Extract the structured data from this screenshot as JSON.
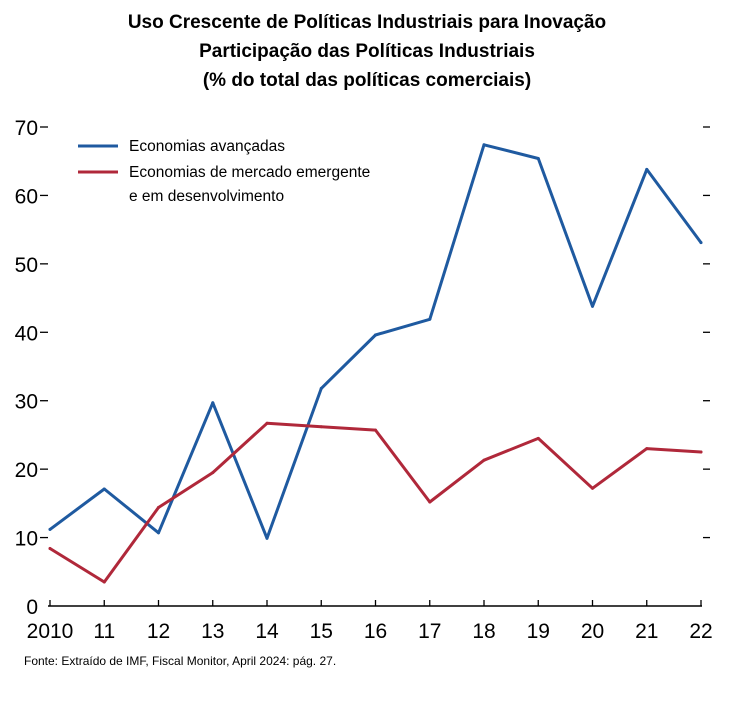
{
  "titles": [
    "Uso Crescente de Políticas Industriais para Inovação",
    "Participação das Políticas Industriais",
    "(% do total das políticas comerciais)"
  ],
  "source": "Fonte: Extraído de IMF, Fiscal Monitor, April 2024:  pág. 27.",
  "chart_data": {
    "type": "line",
    "title": "Uso Crescente de Políticas Industriais para Inovação",
    "subtitle": "Participação das Políticas Industriais (% do total das políticas comerciais)",
    "categories": [
      "2010",
      "11",
      "12",
      "13",
      "14",
      "15",
      "16",
      "17",
      "18",
      "19",
      "20",
      "21",
      "22"
    ],
    "series": [
      {
        "name": "Economias avançadas",
        "color": "#1f5aa0",
        "values": [
          11.2,
          17.1,
          10.7,
          29.7,
          9.9,
          31.8,
          39.6,
          41.9,
          67.4,
          65.4,
          43.8,
          63.8,
          53.1
        ]
      },
      {
        "name_lines": [
          "Economias de mercado emergente",
          "e em desenvolvimento"
        ],
        "color": "#b0283a",
        "values": [
          8.4,
          3.5,
          14.4,
          19.5,
          26.7,
          26.2,
          25.7,
          15.2,
          21.3,
          24.5,
          17.2,
          23.0,
          22.5
        ]
      }
    ],
    "yticks": [
      0,
      10,
      20,
      30,
      40,
      50,
      60,
      70
    ],
    "ylim": [
      0,
      70
    ],
    "xlabel": "",
    "ylabel": "",
    "grid": false,
    "legend_position": "top-left"
  }
}
